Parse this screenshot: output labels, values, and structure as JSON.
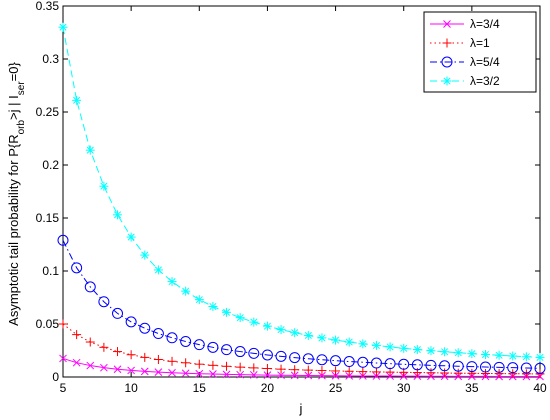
{
  "chart_data": {
    "type": "line",
    "xlabel": "j",
    "ylabel": {
      "prefix": "Asymptotic tail probability for P{R",
      "sub1": "orb",
      "mid": ">j | I",
      "sub2": "ser",
      "suffix": "=0}"
    },
    "xlim": [
      5,
      40
    ],
    "ylim": [
      0,
      0.35
    ],
    "xticks": [
      5,
      10,
      15,
      20,
      25,
      30,
      35,
      40
    ],
    "yticks": [
      0,
      0.05,
      0.1,
      0.15,
      0.2,
      0.25,
      0.3,
      0.35
    ],
    "ytick_labels": [
      "0",
      "0.05",
      "0.1",
      "0.15",
      "0.2",
      "0.25",
      "0.3",
      "0.35"
    ],
    "grid": false,
    "legend_position": "top-right",
    "x": [
      5,
      6,
      7,
      8,
      9,
      10,
      11,
      12,
      13,
      14,
      15,
      16,
      17,
      18,
      19,
      20,
      21,
      22,
      23,
      24,
      25,
      26,
      27,
      28,
      29,
      30,
      31,
      32,
      33,
      34,
      35,
      36,
      37,
      38,
      39,
      40
    ],
    "series": [
      {
        "name": "λ=3/4",
        "color": "#ff00ff",
        "line_style": "solid",
        "marker": "x",
        "values": [
          0.0175,
          0.0135,
          0.0108,
          0.0088,
          0.0073,
          0.0062,
          0.0053,
          0.0046,
          0.004,
          0.0035,
          0.0031,
          0.0028,
          0.0025,
          0.0022,
          0.002,
          0.0018,
          0.0017,
          0.0015,
          0.0014,
          0.0013,
          0.0012,
          0.0011,
          0.001,
          0.0009,
          0.0009,
          0.0008,
          0.0008,
          0.0007,
          0.0007,
          0.0006,
          0.0006,
          0.0006,
          0.0005,
          0.0005,
          0.0005,
          0.0005
        ]
      },
      {
        "name": "λ=1",
        "color": "#ff0000",
        "line_style": "dotted",
        "marker": "+",
        "values": [
          0.05,
          0.04,
          0.033,
          0.028,
          0.024,
          0.021,
          0.0185,
          0.0165,
          0.0148,
          0.0134,
          0.0121,
          0.011,
          0.0101,
          0.0093,
          0.0086,
          0.008,
          0.0074,
          0.0069,
          0.0065,
          0.0061,
          0.0057,
          0.0054,
          0.0051,
          0.0048,
          0.0046,
          0.0044,
          0.0042,
          0.004,
          0.0038,
          0.0036,
          0.0035,
          0.0033,
          0.0032,
          0.0031,
          0.003,
          0.0029
        ]
      },
      {
        "name": "λ=5/4",
        "color": "#0000ff",
        "line_style": "dashdot",
        "marker": "o",
        "values": [
          0.129,
          0.103,
          0.085,
          0.071,
          0.06,
          0.052,
          0.046,
          0.041,
          0.037,
          0.0335,
          0.0305,
          0.028,
          0.0258,
          0.024,
          0.0223,
          0.0208,
          0.0195,
          0.0183,
          0.0172,
          0.0163,
          0.0154,
          0.0146,
          0.0139,
          0.0132,
          0.0126,
          0.012,
          0.0115,
          0.011,
          0.0106,
          0.0102,
          0.0098,
          0.0094,
          0.0091,
          0.0088,
          0.0085,
          0.0082
        ]
      },
      {
        "name": "λ=3/2",
        "color": "#00ffff",
        "line_style": "dashed",
        "marker": "*",
        "values": [
          0.33,
          0.261,
          0.214,
          0.18,
          0.153,
          0.132,
          0.115,
          0.101,
          0.09,
          0.081,
          0.073,
          0.0665,
          0.061,
          0.056,
          0.0518,
          0.048,
          0.0447,
          0.0418,
          0.0392,
          0.0369,
          0.0348,
          0.033,
          0.0313,
          0.0298,
          0.0284,
          0.0271,
          0.0259,
          0.0248,
          0.0238,
          0.0229,
          0.022,
          0.0212,
          0.0205,
          0.0198,
          0.0191,
          0.0185
        ]
      }
    ]
  }
}
